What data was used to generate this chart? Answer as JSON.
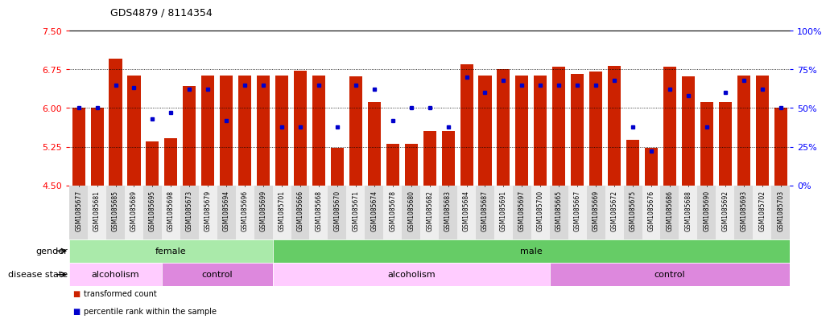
{
  "title": "GDS4879 / 8114354",
  "samples": [
    "GSM1085677",
    "GSM1085681",
    "GSM1085685",
    "GSM1085689",
    "GSM1085695",
    "GSM1085698",
    "GSM1085673",
    "GSM1085679",
    "GSM1085694",
    "GSM1085696",
    "GSM1085699",
    "GSM1085701",
    "GSM1085666",
    "GSM1085668",
    "GSM1085670",
    "GSM1085671",
    "GSM1085674",
    "GSM1085678",
    "GSM1085680",
    "GSM1085682",
    "GSM1085683",
    "GSM1085684",
    "GSM1085687",
    "GSM1085691",
    "GSM1085697",
    "GSM1085700",
    "GSM1085665",
    "GSM1085667",
    "GSM1085669",
    "GSM1085672",
    "GSM1085675",
    "GSM1085676",
    "GSM1085686",
    "GSM1085688",
    "GSM1085690",
    "GSM1085692",
    "GSM1085693",
    "GSM1085702",
    "GSM1085703"
  ],
  "bar_values": [
    6.0,
    6.0,
    6.95,
    6.63,
    5.35,
    5.42,
    6.43,
    6.63,
    6.63,
    6.63,
    6.63,
    6.63,
    6.73,
    6.63,
    5.22,
    6.62,
    6.12,
    5.3,
    5.3,
    5.55,
    5.55,
    6.85,
    6.63,
    6.75,
    6.63,
    6.63,
    6.8,
    6.66,
    6.7,
    6.82,
    5.38,
    5.22,
    6.8,
    6.61,
    6.12,
    6.12,
    6.63,
    6.63,
    6.0
  ],
  "percentile_values": [
    50,
    50,
    65,
    63,
    43,
    47,
    62,
    62,
    42,
    65,
    65,
    38,
    38,
    65,
    38,
    65,
    62,
    42,
    50,
    50,
    38,
    70,
    60,
    68,
    65,
    65,
    65,
    65,
    65,
    68,
    38,
    22,
    62,
    58,
    38,
    60,
    68,
    62,
    50
  ],
  "ylim_left": [
    4.5,
    7.5
  ],
  "yticks_left": [
    4.5,
    5.25,
    6.0,
    6.75,
    7.5
  ],
  "ylim_right": [
    0,
    100
  ],
  "yticks_right": [
    0,
    25,
    50,
    75,
    100
  ],
  "ytick_labels_right": [
    "0%",
    "25%",
    "50%",
    "75%",
    "100%"
  ],
  "bar_color": "#cc2200",
  "dot_color": "#0000cc",
  "bar_bottom": 4.5,
  "gender_groups": [
    {
      "label": "female",
      "start": 0,
      "end": 11,
      "color": "#aaeaaa"
    },
    {
      "label": "male",
      "start": 11,
      "end": 39,
      "color": "#66cc66"
    }
  ],
  "disease_groups": [
    {
      "label": "alcoholism",
      "start": 0,
      "end": 5,
      "color": "#ffccff"
    },
    {
      "label": "control",
      "start": 5,
      "end": 11,
      "color": "#dd88dd"
    },
    {
      "label": "alcoholism",
      "start": 11,
      "end": 26,
      "color": "#ffccff"
    },
    {
      "label": "control",
      "start": 26,
      "end": 39,
      "color": "#dd88dd"
    }
  ]
}
